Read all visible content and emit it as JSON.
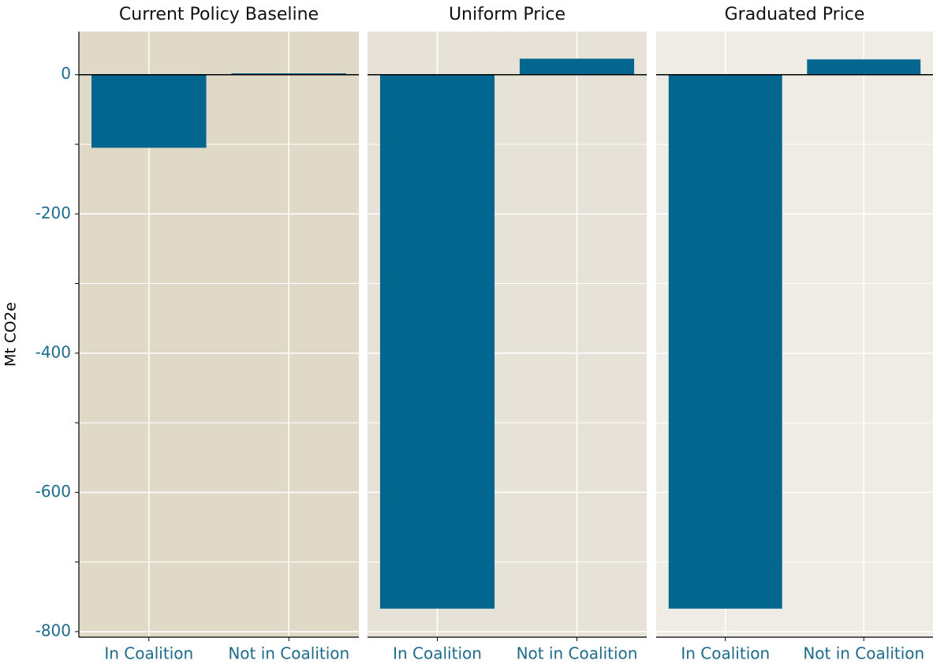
{
  "chart_data": [
    {
      "type": "bar",
      "title": "Current Policy Baseline",
      "ylabel": "Mt CO2e",
      "categories": [
        "In Coalition",
        "Not in Coalition"
      ],
      "values": [
        -105,
        2
      ],
      "color": "#02668f",
      "background": "#e0d9c8",
      "ylim": [
        -808,
        62
      ],
      "yticks": [
        0,
        -200,
        -400,
        -600,
        -800
      ],
      "yminor": [
        -100,
        -300,
        -500,
        -700
      ],
      "grid": true
    },
    {
      "type": "bar",
      "title": "Uniform Price",
      "categories": [
        "In Coalition",
        "Not in Coalition"
      ],
      "values": [
        -767,
        23
      ],
      "color": "#02668f",
      "background": "#e6e2d7",
      "ylim": [
        -808,
        62
      ],
      "yticks": [
        0,
        -200,
        -400,
        -600,
        -800
      ],
      "yminor": [
        -100,
        -300,
        -500,
        -700
      ],
      "grid": true
    },
    {
      "type": "bar",
      "title": "Graduated Price",
      "categories": [
        "In Coalition",
        "Not in Coalition"
      ],
      "values": [
        -767,
        22
      ],
      "color": "#02668f",
      "background": "#efece5",
      "ylim": [
        -808,
        62
      ],
      "yticks": [
        0,
        -200,
        -400,
        -600,
        -800
      ],
      "yminor": [
        -100,
        -300,
        -500,
        -700
      ],
      "grid": true
    }
  ]
}
